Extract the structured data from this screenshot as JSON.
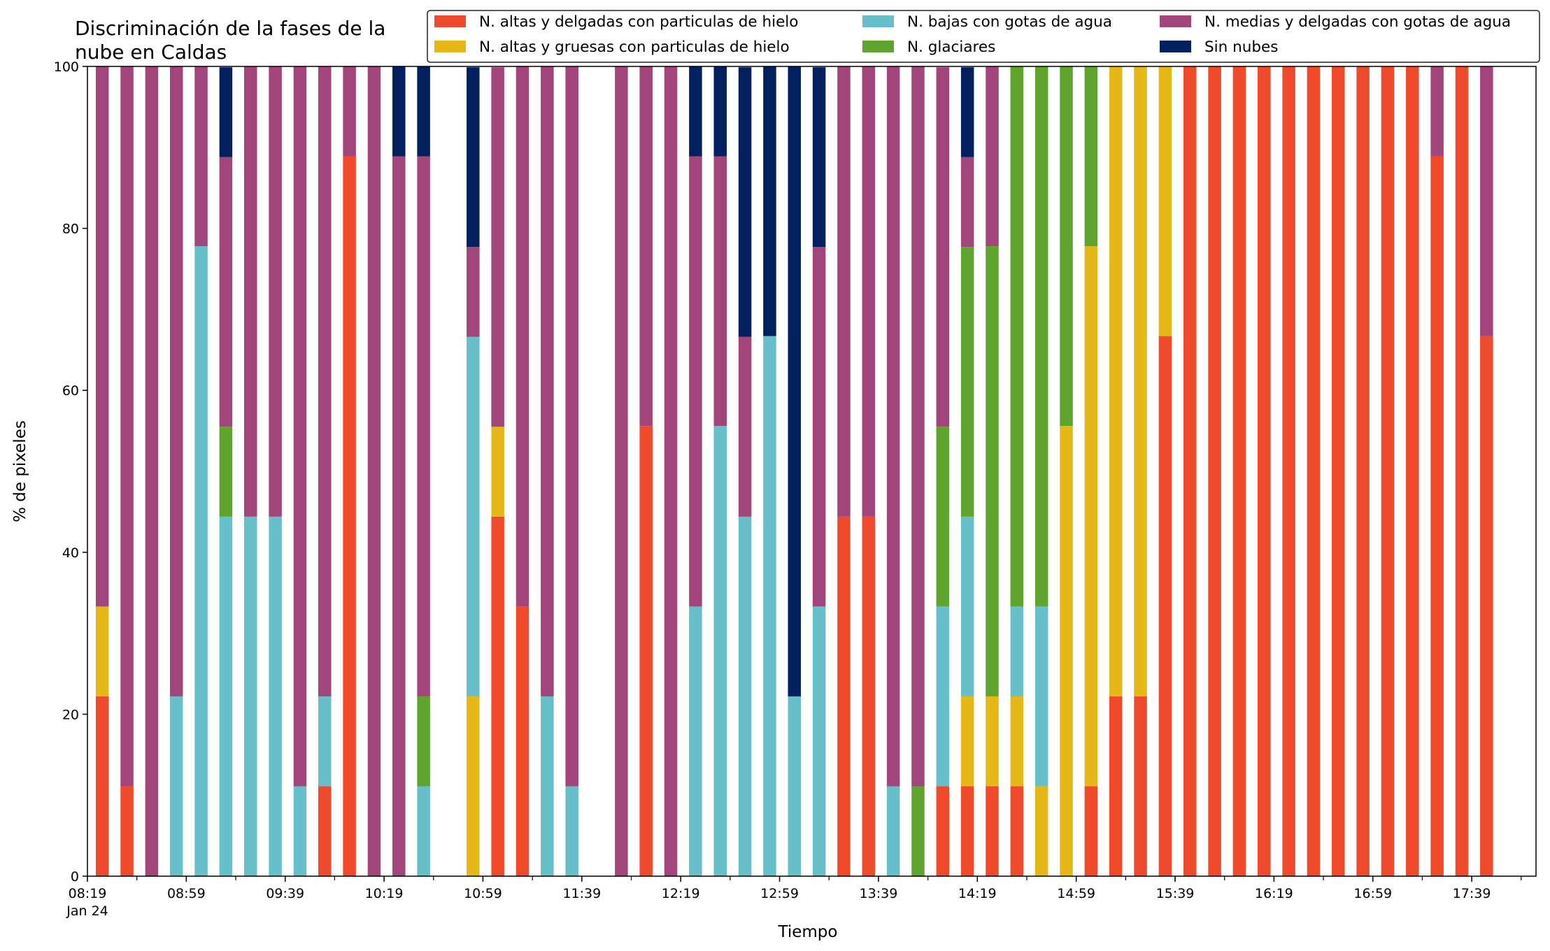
{
  "chart_data": {
    "type": "bar",
    "stacked": true,
    "title_lines": [
      "Discriminación de la fases de la",
      "nube en Caldas"
    ],
    "xlabel": "Tiempo",
    "ylabel": "% de pixeles",
    "ylim": [
      0,
      100
    ],
    "yticks": [
      "0",
      "20",
      "40",
      "60",
      "80",
      "100"
    ],
    "xtick_labels": [
      "08:19",
      "08:59",
      "09:39",
      "10:19",
      "10:59",
      "11:39",
      "12:19",
      "12:59",
      "13:39",
      "14:19",
      "14:59",
      "15:39",
      "16:19",
      "16:59",
      "17:39"
    ],
    "xtick_date_label": "Jan 24",
    "time_start_minutes": 499,
    "time_end_minutes": 1085,
    "grid": false,
    "legend_placement": "top-right",
    "series": [
      {
        "key": "s1",
        "name": "N. altas y delgadas con particulas de hielo",
        "color": "#ef4a2b"
      },
      {
        "key": "s2",
        "name": "N. altas y gruesas con particulas de hielo",
        "color": "#e5b818"
      },
      {
        "key": "s3",
        "name": "N. bajas con gotas de agua",
        "color": "#66bfc9"
      },
      {
        "key": "s4",
        "name": "N. glaciares",
        "color": "#5fa42c"
      },
      {
        "key": "s5",
        "name": "N. medias y delgadas con gotas de agua",
        "color": "#a2457a"
      },
      {
        "key": "s6",
        "name": "Sin nubes",
        "color": "#021f5e"
      }
    ],
    "bars": [
      {
        "time": "08:25",
        "values": [
          22.2,
          11.1,
          0,
          0,
          66.7,
          0
        ]
      },
      {
        "time": "08:35",
        "values": [
          11.1,
          0,
          0,
          0,
          88.9,
          0
        ]
      },
      {
        "time": "08:45",
        "values": [
          0,
          0,
          0,
          0,
          100,
          0
        ]
      },
      {
        "time": "08:55",
        "values": [
          0,
          0,
          22.2,
          0,
          77.8,
          0
        ]
      },
      {
        "time": "09:05",
        "values": [
          0,
          0,
          77.8,
          0,
          22.2,
          0
        ]
      },
      {
        "time": "09:15",
        "values": [
          0,
          0,
          44.4,
          11.1,
          33.3,
          11.1
        ]
      },
      {
        "time": "09:25",
        "values": [
          0,
          0,
          44.4,
          0,
          55.6,
          0
        ]
      },
      {
        "time": "09:35",
        "values": [
          0,
          0,
          44.4,
          0,
          55.6,
          0
        ]
      },
      {
        "time": "09:45",
        "values": [
          0,
          0,
          11.1,
          0,
          88.9,
          0
        ]
      },
      {
        "time": "09:55",
        "values": [
          11.1,
          0,
          11.1,
          0,
          77.8,
          0
        ]
      },
      {
        "time": "10:05",
        "values": [
          88.9,
          0,
          0,
          0,
          11.1,
          0
        ]
      },
      {
        "time": "10:15",
        "values": [
          0,
          0,
          0,
          0,
          100,
          0
        ]
      },
      {
        "time": "10:25",
        "values": [
          0,
          0,
          0,
          0,
          88.9,
          11.1
        ]
      },
      {
        "time": "10:35",
        "values": [
          0,
          0,
          11.1,
          11.1,
          66.7,
          11.1
        ]
      },
      {
        "time": "10:55",
        "values": [
          0,
          22.2,
          44.4,
          0,
          11.1,
          22.2
        ]
      },
      {
        "time": "11:05",
        "values": [
          44.4,
          11.1,
          0,
          0,
          44.4,
          0
        ]
      },
      {
        "time": "11:15",
        "values": [
          33.3,
          0,
          0,
          0,
          66.7,
          0
        ]
      },
      {
        "time": "11:25",
        "values": [
          0,
          0,
          22.2,
          0,
          77.8,
          0
        ]
      },
      {
        "time": "11:35",
        "values": [
          0,
          0,
          11.1,
          0,
          88.9,
          0
        ]
      },
      {
        "time": "11:55",
        "values": [
          0,
          0,
          0,
          0,
          100,
          0
        ]
      },
      {
        "time": "12:05",
        "values": [
          55.6,
          0,
          0,
          0,
          44.4,
          0
        ]
      },
      {
        "time": "12:15",
        "values": [
          0,
          0,
          0,
          0,
          100,
          0
        ]
      },
      {
        "time": "12:25",
        "values": [
          0,
          0,
          33.3,
          0,
          55.6,
          11.1
        ]
      },
      {
        "time": "12:35",
        "values": [
          0,
          0,
          55.6,
          0,
          33.3,
          11.1
        ]
      },
      {
        "time": "12:45",
        "values": [
          0,
          0,
          44.4,
          0,
          22.2,
          33.3
        ]
      },
      {
        "time": "12:55",
        "values": [
          0,
          0,
          66.7,
          0,
          0,
          33.3
        ]
      },
      {
        "time": "13:05",
        "values": [
          0,
          0,
          22.2,
          0,
          0,
          77.8
        ]
      },
      {
        "time": "13:15",
        "values": [
          0,
          0,
          33.3,
          0,
          44.4,
          22.2
        ]
      },
      {
        "time": "13:25",
        "values": [
          44.4,
          0,
          0,
          0,
          55.6,
          0
        ]
      },
      {
        "time": "13:35",
        "values": [
          44.4,
          0,
          0,
          0,
          55.6,
          0
        ]
      },
      {
        "time": "13:45",
        "values": [
          0,
          0,
          11.1,
          0,
          88.9,
          0
        ]
      },
      {
        "time": "13:55",
        "values": [
          0,
          0,
          0,
          11.1,
          88.9,
          0
        ]
      },
      {
        "time": "14:05",
        "values": [
          11.1,
          0,
          22.2,
          22.2,
          44.4,
          0
        ]
      },
      {
        "time": "14:15",
        "values": [
          11.1,
          11.1,
          22.2,
          33.3,
          11.1,
          11.1
        ]
      },
      {
        "time": "14:25",
        "values": [
          11.1,
          11.1,
          0,
          55.6,
          22.2,
          0
        ]
      },
      {
        "time": "14:35",
        "values": [
          11.1,
          11.1,
          11.1,
          66.7,
          0,
          0
        ]
      },
      {
        "time": "14:45",
        "values": [
          0,
          11.1,
          22.2,
          66.7,
          0,
          0
        ]
      },
      {
        "time": "14:55",
        "values": [
          0,
          55.6,
          0,
          44.4,
          0,
          0
        ]
      },
      {
        "time": "15:05",
        "values": [
          11.1,
          66.7,
          0,
          22.2,
          0,
          0
        ]
      },
      {
        "time": "15:15",
        "values": [
          22.2,
          77.8,
          0,
          0,
          0,
          0
        ]
      },
      {
        "time": "15:25",
        "values": [
          22.2,
          77.8,
          0,
          0,
          0,
          0
        ]
      },
      {
        "time": "15:35",
        "values": [
          66.7,
          33.3,
          0,
          0,
          0,
          0
        ]
      },
      {
        "time": "15:45",
        "values": [
          100,
          0,
          0,
          0,
          0,
          0
        ]
      },
      {
        "time": "15:55",
        "values": [
          100,
          0,
          0,
          0,
          0,
          0
        ]
      },
      {
        "time": "16:05",
        "values": [
          100,
          0,
          0,
          0,
          0,
          0
        ]
      },
      {
        "time": "16:15",
        "values": [
          100,
          0,
          0,
          0,
          0,
          0
        ]
      },
      {
        "time": "16:25",
        "values": [
          100,
          0,
          0,
          0,
          0,
          0
        ]
      },
      {
        "time": "16:35",
        "values": [
          100,
          0,
          0,
          0,
          0,
          0
        ]
      },
      {
        "time": "16:45",
        "values": [
          100,
          0,
          0,
          0,
          0,
          0
        ]
      },
      {
        "time": "16:55",
        "values": [
          100,
          0,
          0,
          0,
          0,
          0
        ]
      },
      {
        "time": "17:05",
        "values": [
          100,
          0,
          0,
          0,
          0,
          0
        ]
      },
      {
        "time": "17:15",
        "values": [
          100,
          0,
          0,
          0,
          0,
          0
        ]
      },
      {
        "time": "17:25",
        "values": [
          88.9,
          0,
          0,
          0,
          11.1,
          0
        ]
      },
      {
        "time": "17:35",
        "values": [
          100,
          0,
          0,
          0,
          0,
          0
        ]
      },
      {
        "time": "17:45",
        "values": [
          66.7,
          0,
          0,
          0,
          33.3,
          0
        ]
      }
    ]
  }
}
